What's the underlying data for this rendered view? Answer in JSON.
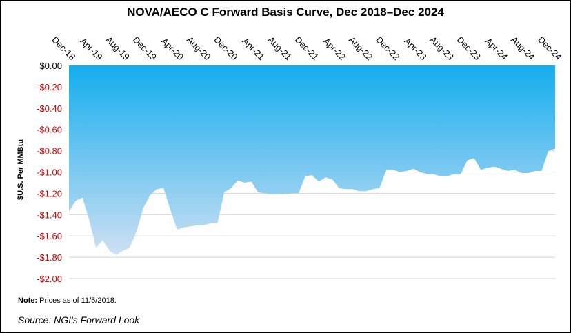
{
  "chart_data": {
    "type": "area",
    "title": "NOVA/AECO C Forward Basis Curve, Dec 2018–Dec 2024",
    "xlabel": "",
    "ylabel": "$U.S. Per MMBtu",
    "ylim": [
      -2.0,
      0.0
    ],
    "yticks": [
      "$0.00",
      "-$0.20",
      "-$0.40",
      "-$0.60",
      "-$0.80",
      "-$1.00",
      "-$1.20",
      "-$1.40",
      "-$1.60",
      "-$1.80",
      "-$2.00"
    ],
    "ytick_values": [
      0,
      -0.2,
      -0.4,
      -0.6,
      -0.8,
      -1.0,
      -1.2,
      -1.4,
      -1.6,
      -1.8,
      -2.0
    ],
    "xtick_labels": [
      "Dec-18",
      "Apr-19",
      "Aug-19",
      "Dec-19",
      "Apr-20",
      "Aug-20",
      "Dec-20",
      "Apr-21",
      "Aug-21",
      "Dec-21",
      "Apr-22",
      "Aug-22",
      "Dec-22",
      "Apr-23",
      "Aug-23",
      "Dec-23",
      "Apr-24",
      "Aug-24",
      "Dec-24"
    ],
    "grid": true,
    "x_start": "Dec-18",
    "x_step": "1 month",
    "values": [
      -1.37,
      -1.27,
      -1.24,
      -1.45,
      -1.71,
      -1.64,
      -1.74,
      -1.78,
      -1.74,
      -1.71,
      -1.56,
      -1.34,
      -1.22,
      -1.16,
      -1.15,
      -1.35,
      -1.54,
      -1.52,
      -1.51,
      -1.5,
      -1.5,
      -1.48,
      -1.48,
      -1.19,
      -1.15,
      -1.08,
      -1.1,
      -1.09,
      -1.19,
      -1.2,
      -1.21,
      -1.21,
      -1.21,
      -1.2,
      -1.2,
      -1.04,
      -1.03,
      -1.09,
      -1.05,
      -1.07,
      -1.15,
      -1.16,
      -1.16,
      -1.18,
      -1.18,
      -1.16,
      -1.15,
      -0.98,
      -0.98,
      -1.0,
      -0.99,
      -0.97,
      -1.0,
      -1.02,
      -1.02,
      -1.04,
      -1.04,
      -1.02,
      -1.02,
      -0.89,
      -0.87,
      -0.98,
      -0.96,
      -0.95,
      -0.97,
      -0.99,
      -0.98,
      -1.01,
      -1.01,
      -0.99,
      -0.99,
      -0.8,
      -0.78
    ],
    "colors": {
      "fill_top": "#14adee",
      "fill_bottom": "#cfe0f2",
      "negative_tick": "#e00000",
      "zero_tick": "#000000",
      "grid": "#d4d4d4"
    }
  },
  "note_label": "Note:",
  "note_text": " Prices as of 11/5/2018.",
  "source": "Source: NGI's Forward Look"
}
